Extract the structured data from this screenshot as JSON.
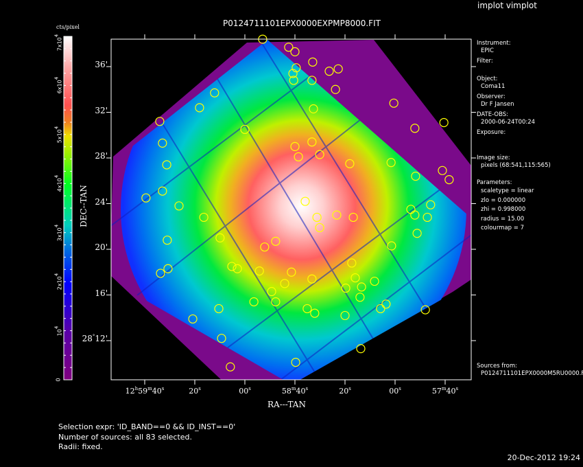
{
  "app_title": "implot vimplot",
  "chart_data": {
    "type": "heatmap",
    "title": "P0124711101EPX0000EXPMP8000.FIT",
    "xlabel": "RA---TAN",
    "ylabel": "DEC--TAN",
    "x_ticks": [
      [
        [
          "12",
          "h"
        ],
        [
          "59",
          "m"
        ],
        [
          "40",
          "s"
        ]
      ],
      [
        [
          "20",
          "s"
        ]
      ],
      [
        [
          "00",
          "s"
        ]
      ],
      [
        [
          "58",
          "m"
        ],
        [
          "40",
          "s"
        ]
      ],
      [
        [
          "20",
          "s"
        ]
      ],
      [
        [
          "00",
          "s"
        ]
      ],
      [
        [
          "57",
          "m"
        ],
        [
          "40",
          "s"
        ]
      ]
    ],
    "x_tick_values_sec_after_12h57m": [
      160,
      140,
      120,
      100,
      80,
      60,
      40
    ],
    "y_ticks": [
      "36'",
      "32'",
      "28'",
      "24'",
      "20'",
      "16'"
    ],
    "y_tick_last": [
      [
        "28",
        "°"
      ],
      [
        "12'",
        ""
      ]
    ],
    "y_tick_values_arcmin_after_28deg": [
      36,
      32,
      28,
      24,
      20,
      16,
      12
    ],
    "colorbar": {
      "unit": "cts/pixel",
      "range": [
        0,
        70000
      ],
      "labels": [
        {
          "value": 0,
          "base": "0",
          "exp": ""
        },
        {
          "value": 10000,
          "base": "10",
          "exp": "4"
        },
        {
          "value": 20000,
          "base": "2x10",
          "exp": "4"
        },
        {
          "value": 30000,
          "base": "3x10",
          "exp": "4"
        },
        {
          "value": 40000,
          "base": "4x10",
          "exp": "4"
        },
        {
          "value": 50000,
          "base": "5x10",
          "exp": "4"
        },
        {
          "value": 60000,
          "base": "6x10",
          "exp": "4"
        },
        {
          "value": 70000,
          "base": "7x10",
          "exp": "4"
        }
      ],
      "colors": [
        "#800080",
        "#5a00a8",
        "#0000ff",
        "#0070e0",
        "#00d0c0",
        "#00ff20",
        "#a0f000",
        "#f0e000",
        "#f08020",
        "#ff5050",
        "#ffa0a0",
        "#ffffff"
      ]
    },
    "source_color": "#ffff00",
    "sources_ra_sec_after_12h57m_dec_arcmin_after_28deg": [
      [
        112.9,
        38.4
      ],
      [
        102.5,
        37.7
      ],
      [
        100.0,
        37.3
      ],
      [
        92.9,
        36.4
      ],
      [
        99.5,
        35.9
      ],
      [
        86.3,
        35.6
      ],
      [
        82.7,
        35.8
      ],
      [
        100.8,
        35.4
      ],
      [
        100.5,
        34.8
      ],
      [
        93.2,
        34.8
      ],
      [
        83.8,
        34.0
      ],
      [
        132.1,
        33.7
      ],
      [
        60.5,
        32.8
      ],
      [
        138.1,
        32.4
      ],
      [
        92.6,
        32.3
      ],
      [
        154.0,
        31.2
      ],
      [
        52.1,
        30.6
      ],
      [
        120.0,
        30.5
      ],
      [
        40.5,
        31.1
      ],
      [
        152.9,
        29.3
      ],
      [
        93.2,
        29.4
      ],
      [
        100.0,
        29.0
      ],
      [
        151.2,
        27.4
      ],
      [
        61.6,
        27.6
      ],
      [
        78.1,
        27.5
      ],
      [
        98.6,
        28.1
      ],
      [
        90.1,
        28.3
      ],
      [
        41.1,
        26.9
      ],
      [
        51.8,
        26.4
      ],
      [
        38.4,
        26.1
      ],
      [
        152.9,
        25.1
      ],
      [
        159.5,
        24.5
      ],
      [
        146.3,
        23.8
      ],
      [
        45.8,
        23.9
      ],
      [
        53.7,
        23.5
      ],
      [
        52.1,
        23.0
      ],
      [
        95.9,
        24.2
      ],
      [
        136.4,
        22.8
      ],
      [
        91.2,
        22.8
      ],
      [
        47.1,
        22.8
      ],
      [
        83.3,
        23.0
      ],
      [
        90.1,
        21.9
      ],
      [
        76.7,
        22.8
      ],
      [
        51.2,
        21.4
      ],
      [
        129.9,
        21.0
      ],
      [
        151.0,
        20.8
      ],
      [
        112.1,
        20.2
      ],
      [
        107.7,
        20.7
      ],
      [
        61.4,
        20.3
      ],
      [
        150.7,
        18.3
      ],
      [
        153.7,
        17.9
      ],
      [
        125.2,
        18.5
      ],
      [
        123.0,
        18.3
      ],
      [
        114.2,
        18.1
      ],
      [
        101.4,
        18.0
      ],
      [
        77.3,
        18.8
      ],
      [
        75.9,
        17.5
      ],
      [
        104.1,
        17.0
      ],
      [
        93.2,
        17.4
      ],
      [
        109.3,
        16.3
      ],
      [
        68.2,
        17.2
      ],
      [
        73.4,
        16.7
      ],
      [
        79.7,
        16.6
      ],
      [
        107.7,
        15.4
      ],
      [
        116.4,
        15.4
      ],
      [
        74.0,
        15.8
      ],
      [
        63.6,
        15.2
      ],
      [
        65.8,
        14.8
      ],
      [
        130.4,
        14.8
      ],
      [
        92.1,
        14.4
      ],
      [
        95.1,
        14.8
      ],
      [
        140.8,
        13.9
      ],
      [
        80.0,
        14.2
      ],
      [
        47.9,
        14.7
      ],
      [
        129.3,
        12.2
      ],
      [
        73.7,
        11.3
      ],
      [
        99.7,
        10.1
      ],
      [
        125.8,
        9.7
      ]
    ]
  },
  "panel": {
    "instrument_label": "Instrument:",
    "instrument": "EPIC",
    "filter_label": "Filter:",
    "object_label": "Object:",
    "object": "Coma11",
    "observer_label": "Observer:",
    "observer": "Dr F Jansen",
    "date_label": "DATE-OBS:",
    "date": "2000-06-24T00:24",
    "exposure_label": "Exposure:",
    "image_size_label": "Image size:",
    "image_size": "pixels (68:541,115:565)",
    "parameters_label": "Parameters:",
    "params": [
      "scaletype = linear",
      "zlo = 0.000000",
      "zhi = 0.998000",
      "radius =  15.00",
      "colourmap =   7"
    ],
    "sources_label": "Sources from:",
    "sources_file": "P0124711101EPX0000M5RU0000.F"
  },
  "footer": {
    "selection": "Selection expr: 'ID_BAND==0 && ID_INST==0'",
    "count": "Number of sources: all 83 selected.",
    "radii": "Radii: fixed."
  },
  "timestamp": "20-Dec-2012 19:24"
}
